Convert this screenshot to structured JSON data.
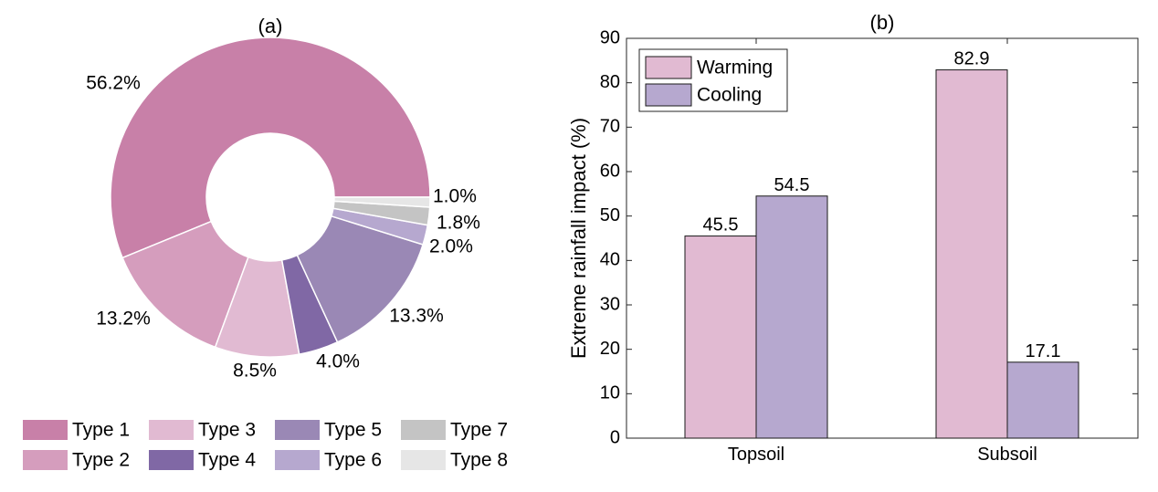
{
  "chart_data": [
    {
      "type": "pie",
      "title": "(a)",
      "donut": true,
      "categories": [
        "Type 1",
        "Type 2",
        "Type 3",
        "Type 4",
        "Type 5",
        "Type 6",
        "Type 7",
        "Type 8"
      ],
      "values": [
        56.2,
        13.2,
        8.5,
        4.0,
        13.3,
        2.0,
        1.8,
        1.0
      ],
      "labels": [
        "56.2%",
        "13.2%",
        "8.5%",
        "4.0%",
        "13.3%",
        "2.0%",
        "1.8%",
        "1.0%"
      ],
      "colors": [
        "#c880a8",
        "#d59dbd",
        "#e1bad2",
        "#8068a5",
        "#9a88b5",
        "#b6a8cf",
        "#c4c4c4",
        "#e6e6e6"
      ],
      "legend": {
        "placement": "bottom",
        "entries": [
          "Type 1",
          "Type 2",
          "Type 3",
          "Type 4",
          "Type 5",
          "Type 6",
          "Type 7",
          "Type 8"
        ]
      }
    },
    {
      "type": "bar",
      "title": "(b)",
      "categories": [
        "Topsoil",
        "Subsoil"
      ],
      "series": [
        {
          "name": "Warming",
          "values": [
            45.5,
            82.9
          ],
          "labels": [
            "45.5",
            "82.9"
          ],
          "color": "#e1bad2"
        },
        {
          "name": "Cooling",
          "values": [
            54.5,
            17.1
          ],
          "labels": [
            "54.5",
            "17.1"
          ],
          "color": "#b6a8cf"
        }
      ],
      "xlabel": "",
      "ylabel": "Extreme rainfall impact (%)",
      "ylim": [
        0,
        90
      ],
      "yticks": [
        "0",
        "10",
        "20",
        "30",
        "40",
        "50",
        "60",
        "70",
        "80",
        "90"
      ],
      "grid": false,
      "legend": {
        "placement": "top-left",
        "entries": [
          "Warming",
          "Cooling"
        ]
      }
    }
  ]
}
